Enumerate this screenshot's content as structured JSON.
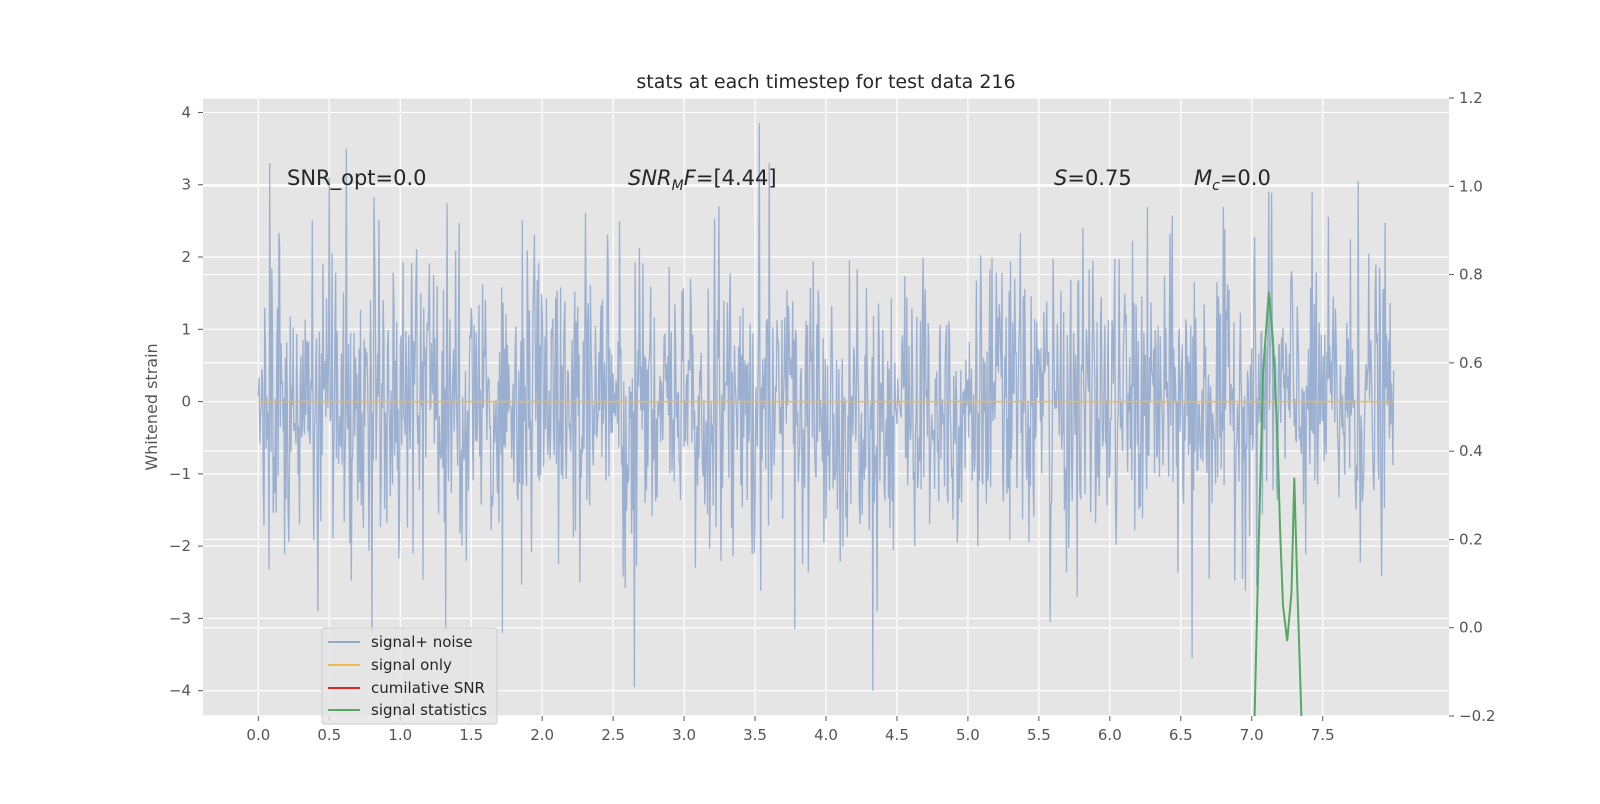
{
  "chart_data": {
    "type": "line",
    "title": "stats at each timestep for test data 216",
    "ylabel": "Whitened strain",
    "xlabel": "",
    "xlim": [
      -0.39,
      8.39
    ],
    "ylim": [
      -4.35,
      4.2
    ],
    "y2lim": [
      -0.2,
      1.2
    ],
    "grid": true,
    "x_ticks": [
      0.0,
      0.5,
      1.0,
      1.5,
      2.0,
      2.5,
      3.0,
      3.5,
      4.0,
      4.5,
      5.0,
      5.5,
      6.0,
      6.5,
      7.0,
      7.5
    ],
    "x_tick_labels": [
      "0.0",
      "0.5",
      "1.0",
      "1.5",
      "2.0",
      "2.5",
      "3.0",
      "3.5",
      "4.0",
      "4.5",
      "5.0",
      "5.5",
      "6.0",
      "6.5",
      "7.0",
      "7.5"
    ],
    "y_ticks": [
      -4,
      -3,
      -2,
      -1,
      0,
      1,
      2,
      3,
      4
    ],
    "y_tick_labels": [
      "−4",
      "−3",
      "−2",
      "−1",
      "0",
      "1",
      "2",
      "3",
      "4"
    ],
    "y2_ticks": [
      -0.2,
      0.0,
      0.2,
      0.4,
      0.6,
      0.8,
      1.0,
      1.2
    ],
    "y2_tick_labels": [
      "−0.2",
      "0.0",
      "0.2",
      "0.4",
      "0.6",
      "0.8",
      "1.0",
      "1.2"
    ],
    "annotations": {
      "snr_opt": "SNR_opt=0.0",
      "snr_mf": "[4.44]",
      "s_value": "=0.75",
      "mc_value": "=0.0"
    },
    "legend_position": "lower-left",
    "series": [
      {
        "name": "signal+ noise",
        "color": "#92a8cd",
        "kind": "noise",
        "x_range": [
          0.0,
          8.0
        ],
        "approx_samples": 1600,
        "typical_abs": 1.6,
        "extreme_points": [
          {
            "x": 0.08,
            "y": 3.3
          },
          {
            "x": 0.5,
            "y": 3.1
          },
          {
            "x": 0.62,
            "y": 3.5
          },
          {
            "x": 2.65,
            "y": -3.95
          },
          {
            "x": 3.53,
            "y": 3.85
          },
          {
            "x": 3.6,
            "y": 3.3
          },
          {
            "x": 4.33,
            "y": -4.0
          },
          {
            "x": 6.58,
            "y": -3.55
          },
          {
            "x": 7.75,
            "y": 3.05
          },
          {
            "x": 0.8,
            "y": -3.2
          },
          {
            "x": 1.32,
            "y": -3.15
          },
          {
            "x": 1.72,
            "y": -3.2
          },
          {
            "x": 3.78,
            "y": -3.15
          },
          {
            "x": 5.58,
            "y": -3.05
          },
          {
            "x": 7.12,
            "y": 2.9
          }
        ]
      },
      {
        "name": "signal only",
        "color": "#f0b94e",
        "x": [
          0.0,
          8.0
        ],
        "y": [
          0.0,
          0.0
        ]
      },
      {
        "name": "cumilative SNR",
        "color": "#e0261f",
        "x": [],
        "y": []
      },
      {
        "name": "signal statistics",
        "color": "#55a862",
        "axis": "right",
        "x": [
          7.02,
          7.05,
          7.08,
          7.12,
          7.15,
          7.18,
          7.2,
          7.22,
          7.25,
          7.28,
          7.3,
          7.32,
          7.35
        ],
        "y": [
          -0.2,
          0.2,
          0.58,
          0.76,
          0.65,
          0.44,
          0.22,
          0.05,
          -0.03,
          0.08,
          0.34,
          0.1,
          -0.2
        ]
      }
    ]
  }
}
